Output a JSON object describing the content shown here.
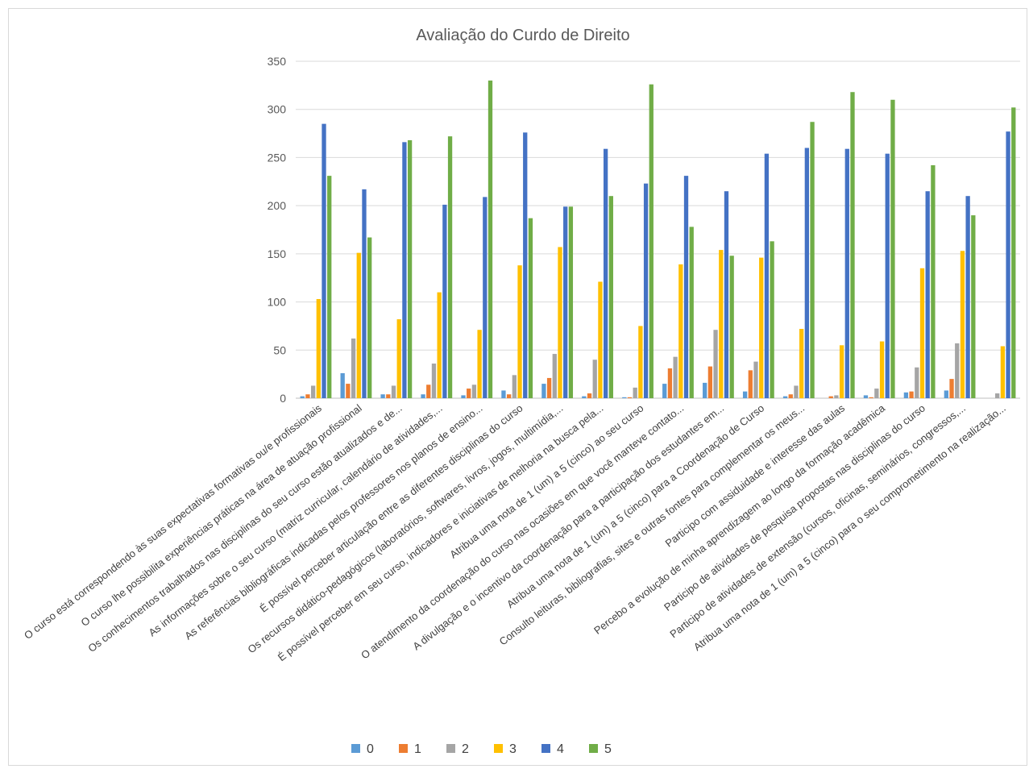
{
  "chart_data": {
    "type": "bar",
    "title": "Avaliação do Curdo de Direito",
    "xlabel": "",
    "ylabel": "",
    "ylim": [
      0,
      350
    ],
    "yticks": [
      0,
      50,
      100,
      150,
      200,
      250,
      300,
      350
    ],
    "grid": true,
    "legend_position": "bottom",
    "categories": [
      "O curso está correspondendo às suas expectativas formativas ou/e profissionais",
      "O curso lhe possibilita experiências práticas na área de atuação profissional",
      "Os conhecimentos trabalhados nas disciplinas do seu curso estão atualizados e de...",
      "As informações sobre o seu curso (matriz curricular, calendário de atividades,...",
      "As referências bibliográficas indicadas pelos professores nos planos de ensino...",
      "É possível perceber articulação entre as diferentes disciplinas do curso",
      "Os recursos didático-pedagógicos (laboratórios, softwares, livros, jogos, multimídia,...",
      "É possível perceber em seu curso, indicadores e iniciativas de melhoria na busca pela...",
      "Atribua uma nota de 1 (um) a 5 (cinco) ao seu curso",
      "O atendimento da coordenação do curso nas ocasiões em que você manteve contato...",
      "A divulgação e o incentivo da coordenação para a participação dos estudantes em...",
      "Atribua uma nota de 1 (um) a 5 (cinco) para a Coordenação de Curso",
      "Consulto leituras, bibliografias, sites e outras fontes para complementar os meus...",
      "Participo com assiduidade e interesse das aulas",
      "Percebo a evolução de minha aprendizagem ao longo da formação acadêmica",
      "Participo de atividades de pesquisa propostas nas disciplinas do curso",
      "Participo de atividades de extensão (cursos, oficinas, seminários, congressos,...",
      "Atribua uma nota de 1 (um) a 5 (cinco) para o seu comprometimento na realização..."
    ],
    "series": [
      {
        "name": "0",
        "color": "#5b9bd5",
        "values": [
          2,
          26,
          4,
          4,
          3,
          8,
          15,
          2,
          1,
          15,
          16,
          7,
          2,
          0,
          3,
          6,
          8,
          0
        ]
      },
      {
        "name": "1",
        "color": "#ed7d31",
        "values": [
          4,
          15,
          4,
          14,
          10,
          4,
          21,
          5,
          1,
          31,
          33,
          29,
          4,
          2,
          1,
          7,
          20,
          0
        ]
      },
      {
        "name": "2",
        "color": "#a5a5a5",
        "values": [
          13,
          62,
          13,
          36,
          14,
          24,
          46,
          40,
          11,
          43,
          71,
          38,
          13,
          3,
          10,
          32,
          57,
          5
        ]
      },
      {
        "name": "3",
        "color": "#ffc000",
        "values": [
          103,
          151,
          82,
          110,
          71,
          138,
          157,
          121,
          75,
          139,
          154,
          146,
          72,
          55,
          59,
          135,
          153,
          54
        ]
      },
      {
        "name": "4",
        "color": "#4472c4",
        "values": [
          285,
          217,
          266,
          201,
          209,
          276,
          199,
          259,
          223,
          231,
          215,
          254,
          260,
          259,
          254,
          215,
          210,
          277
        ]
      },
      {
        "name": "5",
        "color": "#70ad47",
        "values": [
          231,
          167,
          268,
          272,
          330,
          187,
          199,
          210,
          326,
          178,
          148,
          163,
          287,
          318,
          310,
          242,
          190,
          302
        ]
      }
    ]
  }
}
